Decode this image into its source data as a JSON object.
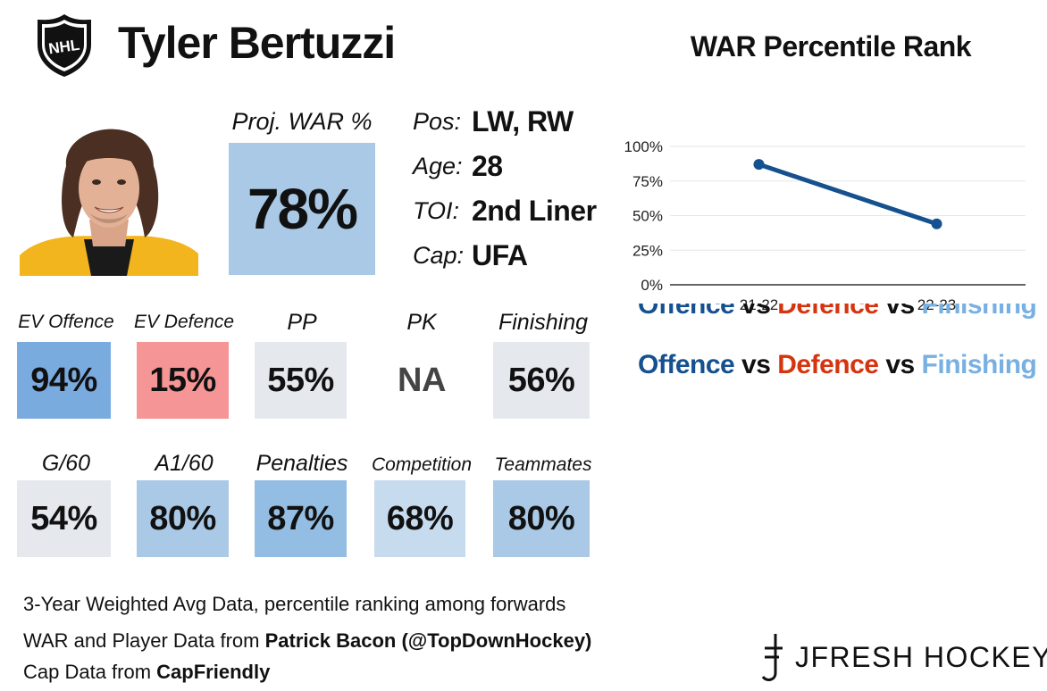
{
  "header": {
    "player_name": "Tyler Bertuzzi",
    "chart_title": "WAR Percentile Rank"
  },
  "projection": {
    "label": "Proj. WAR %",
    "value": "78%",
    "color": "#a9c9e6"
  },
  "info": [
    {
      "label": "Pos:",
      "value": "LW, RW"
    },
    {
      "label": "Age:",
      "value": "28"
    },
    {
      "label": "TOI:",
      "value": "2nd Liner"
    },
    {
      "label": "Cap:",
      "value": "UFA"
    }
  ],
  "stats_row1": [
    {
      "label": "EV Offence",
      "value": "94%",
      "color": "#7aabdf"
    },
    {
      "label": "EV Defence",
      "value": "15%",
      "color": "#f59595"
    },
    {
      "label": "PP",
      "value": "55%",
      "color": "#e5e9ee"
    },
    {
      "label": "PK",
      "value": "NA",
      "color": "#ffffff"
    },
    {
      "label": "Finishing",
      "value": "56%",
      "color": "#e5e9ee"
    }
  ],
  "stats_row2": [
    {
      "label": "G/60",
      "value": "54%",
      "color": "#e5e9ee"
    },
    {
      "label": "A1/60",
      "value": "80%",
      "color": "#a9c9e6"
    },
    {
      "label": "Penalties",
      "value": "87%",
      "color": "#94bde3"
    },
    {
      "label": "Competition",
      "value": "68%",
      "color": "#c7dbef"
    },
    {
      "label": "Teammates",
      "value": "80%",
      "color": "#a9c9e6"
    }
  ],
  "legend": {
    "offence": "Offence",
    "vs1": "vs",
    "defence": "Defence",
    "vs2": "vs",
    "finishing": "Finishing",
    "colors": {
      "offence": "#15508f",
      "vs": "#111111",
      "defence": "#d6330f",
      "finishing": "#78b0e2"
    }
  },
  "footer": {
    "line1": "3-Year Weighted Avg Data, percentile ranking among forwards",
    "line2_prefix": "WAR and Player Data from ",
    "line2_bold": "Patrick Bacon (@TopDownHockey)",
    "line3_prefix": "Cap Data from ",
    "line3_bold": "CapFriendly"
  },
  "brand": {
    "text": "JFRESH HOCKEY"
  },
  "chart_data": {
    "type": "line",
    "categories": [
      "21-22",
      "22-23"
    ],
    "series": [
      {
        "values": [
          0.87,
          0.44
        ],
        "color": "#15508f"
      }
    ],
    "ylim": [
      0,
      1
    ],
    "yticks": [
      "0%",
      "25%",
      "50%",
      "75%",
      "100%"
    ],
    "grid": true,
    "title": "WAR Percentile Rank",
    "xlabel": "",
    "ylabel": ""
  }
}
